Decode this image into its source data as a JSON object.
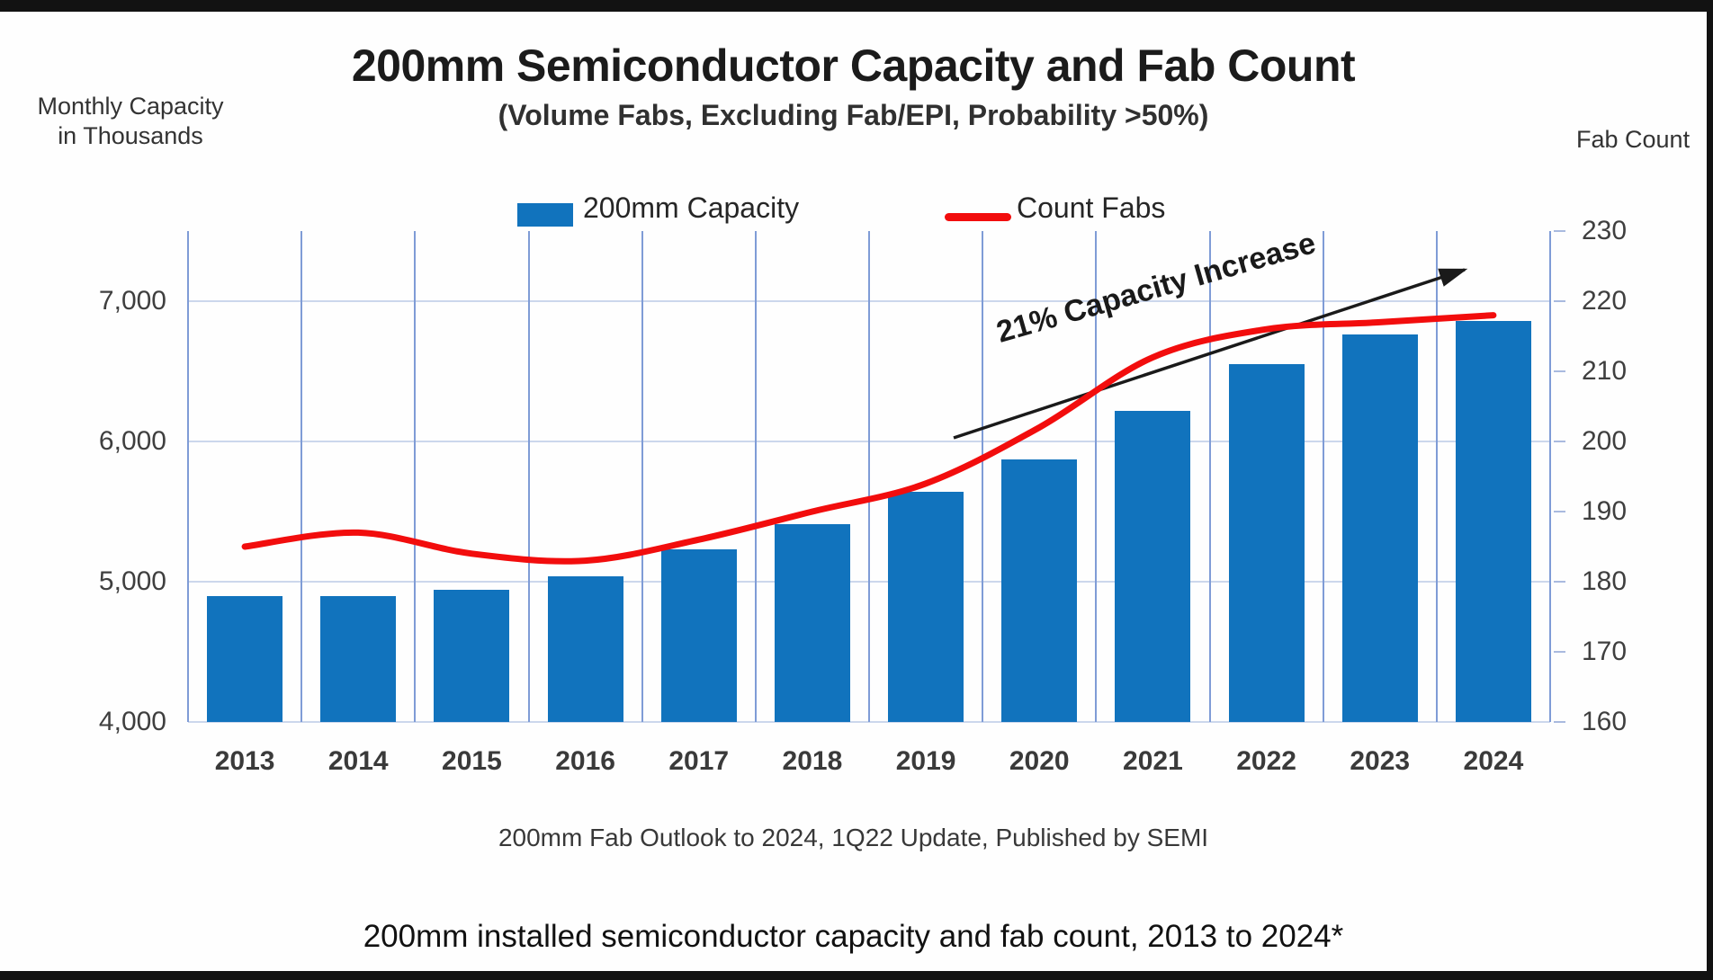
{
  "caption": "200mm installed semiconductor capacity and fab count, 2013 to 2024*",
  "colors": {
    "bar": "#1173BD",
    "line": "#F20D0D",
    "arrow": "#1A1A1A",
    "vertical_grid": "#7F9CD6",
    "horizontal_grid": "#CCD7EC",
    "tick_dash": "#A9BADF",
    "frame": "#121212"
  },
  "chart_data": {
    "type": "bar",
    "title": "200mm Semiconductor Capacity and Fab Count",
    "subtitle": "(Volume Fabs, Excluding Fab/EPI, Probability >50%)",
    "categories": [
      "2013",
      "2014",
      "2015",
      "2016",
      "2017",
      "2018",
      "2019",
      "2020",
      "2021",
      "2022",
      "2023",
      "2024"
    ],
    "series": [
      {
        "name": "200mm Capacity",
        "type": "bar",
        "axis": "left",
        "color": "#1173BD",
        "values": [
          4900,
          4900,
          4940,
          5040,
          5230,
          5410,
          5640,
          5870,
          6220,
          6550,
          6760,
          6860
        ]
      },
      {
        "name": "Count Fabs",
        "type": "line",
        "axis": "right",
        "color": "#F20D0D",
        "values": [
          185,
          187,
          184,
          183,
          186,
          190,
          194,
          202,
          212,
          216,
          217,
          218
        ]
      }
    ],
    "left_axis": {
      "label": "Monthly Capacity\nin Thousands",
      "min": 4000,
      "max": 7500,
      "ticks": [
        4000,
        5000,
        6000,
        7000
      ],
      "tick_labels": [
        "4,000",
        "5,000",
        "6,000",
        "7,000"
      ]
    },
    "right_axis": {
      "label": "Fab Count",
      "min": 160,
      "max": 230,
      "ticks": [
        160,
        170,
        180,
        190,
        200,
        210,
        220,
        230
      ],
      "tick_labels": [
        "160",
        "170",
        "180",
        "190",
        "200",
        "210",
        "220",
        "230"
      ]
    },
    "legend_position": "top",
    "grid": true,
    "annotation": {
      "text": "21% Capacity Increase"
    },
    "source": "200mm Fab Outlook to 2024, 1Q22 Update, Published by SEMI"
  }
}
